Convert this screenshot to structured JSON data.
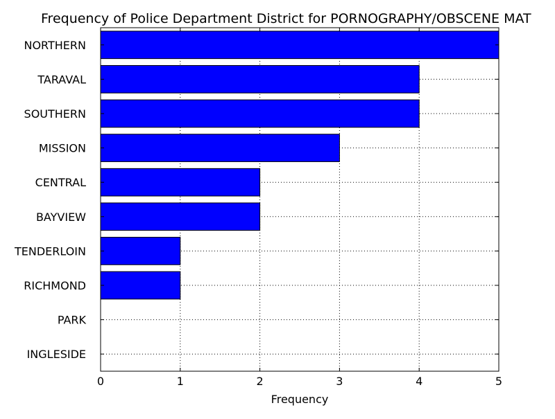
{
  "chart_data": {
    "type": "bar",
    "orientation": "horizontal",
    "title": "Frequency of Police Department District for PORNOGRAPHY/OBSCENE MAT",
    "xlabel": "Frequency",
    "ylabel": "",
    "categories": [
      "NORTHERN",
      "TARAVAL",
      "SOUTHERN",
      "MISSION",
      "CENTRAL",
      "BAYVIEW",
      "TENDERLOIN",
      "RICHMOND",
      "PARK",
      "INGLESIDE"
    ],
    "values": [
      5,
      4,
      4,
      3,
      2,
      2,
      1,
      1,
      0,
      0
    ],
    "xlim": [
      0,
      5
    ],
    "xticks": [
      "0",
      "1",
      "2",
      "3",
      "4",
      "5"
    ],
    "grid": true,
    "bar_color": "#0000ff",
    "bar_edge_color": "#000000"
  }
}
